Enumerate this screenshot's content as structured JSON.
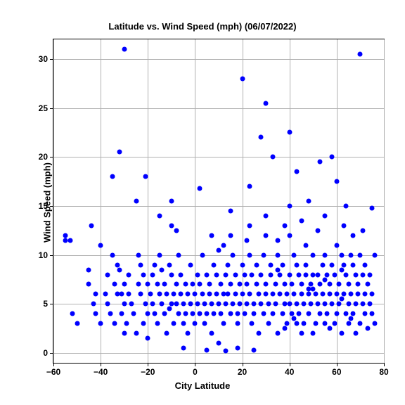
{
  "chart": {
    "type": "scatter",
    "title": "Latitude vs. Wind Speed (mph) (06/07/2022)",
    "title_fontsize": 13,
    "xlabel": "City Latitude",
    "ylabel": "Wind Speed (mph)",
    "label_fontsize": 13,
    "tick_fontsize": 12,
    "xlim": [
      -60,
      80
    ],
    "ylim": [
      -1,
      32
    ],
    "xticks": [
      -60,
      -40,
      -20,
      0,
      20,
      40,
      60,
      80
    ],
    "yticks": [
      0,
      5,
      10,
      15,
      20,
      25,
      30
    ],
    "background_color": "#ffffff",
    "grid_color": "#b0b0b0",
    "border_color": "#000000",
    "marker_color": "#0000ff",
    "marker_size": 7,
    "points": [
      [
        -55,
        11.5
      ],
      [
        -55,
        12
      ],
      [
        -53,
        11.5
      ],
      [
        -52,
        4
      ],
      [
        -50,
        3
      ],
      [
        -45,
        7
      ],
      [
        -45,
        8.5
      ],
      [
        -44,
        13
      ],
      [
        -43,
        5
      ],
      [
        -42,
        4
      ],
      [
        -42,
        6
      ],
      [
        -40,
        3
      ],
      [
        -40,
        11
      ],
      [
        -38,
        6
      ],
      [
        -37,
        8
      ],
      [
        -37,
        5
      ],
      [
        -36,
        4
      ],
      [
        -35,
        10
      ],
      [
        -35,
        18
      ],
      [
        -34,
        7
      ],
      [
        -34,
        3
      ],
      [
        -33,
        9
      ],
      [
        -33,
        6
      ],
      [
        -32,
        20.5
      ],
      [
        -32,
        8.5
      ],
      [
        -31,
        4
      ],
      [
        -31,
        6
      ],
      [
        -30,
        5
      ],
      [
        -30,
        7
      ],
      [
        -30,
        2
      ],
      [
        -30,
        31
      ],
      [
        -29,
        3
      ],
      [
        -28,
        8
      ],
      [
        -28,
        6
      ],
      [
        -27,
        5
      ],
      [
        -26,
        4
      ],
      [
        -25,
        2
      ],
      [
        -25,
        15.5
      ],
      [
        -24,
        10
      ],
      [
        -24,
        7
      ],
      [
        -23,
        6
      ],
      [
        -23,
        9
      ],
      [
        -22,
        3
      ],
      [
        -22,
        8
      ],
      [
        -21,
        5
      ],
      [
        -21,
        18
      ],
      [
        -20,
        4
      ],
      [
        -20,
        7
      ],
      [
        -20,
        1.5
      ],
      [
        -19,
        6
      ],
      [
        -18,
        8
      ],
      [
        -18,
        5
      ],
      [
        -17,
        9
      ],
      [
        -17,
        4
      ],
      [
        -16,
        7
      ],
      [
        -16,
        3
      ],
      [
        -15,
        6
      ],
      [
        -15,
        10
      ],
      [
        -15,
        14
      ],
      [
        -14,
        5
      ],
      [
        -14,
        8.5
      ],
      [
        -13,
        4
      ],
      [
        -13,
        7
      ],
      [
        -12,
        6
      ],
      [
        -12,
        2
      ],
      [
        -11,
        9
      ],
      [
        -11,
        4.5
      ],
      [
        -10,
        5
      ],
      [
        -10,
        8
      ],
      [
        -10,
        15.5
      ],
      [
        -10,
        13
      ],
      [
        -9,
        6
      ],
      [
        -9,
        3
      ],
      [
        -8,
        7
      ],
      [
        -8,
        5
      ],
      [
        -7,
        4
      ],
      [
        -7,
        10
      ],
      [
        -6,
        6
      ],
      [
        -6,
        8
      ],
      [
        -5,
        5
      ],
      [
        -5,
        3
      ],
      [
        -5,
        0.5
      ],
      [
        -4,
        7
      ],
      [
        -4,
        4
      ],
      [
        -3,
        6
      ],
      [
        -3,
        2
      ],
      [
        -2,
        5
      ],
      [
        -2,
        9
      ],
      [
        -1,
        4
      ],
      [
        -1,
        7
      ],
      [
        0,
        6
      ],
      [
        0,
        3
      ],
      [
        1,
        8
      ],
      [
        1,
        5
      ],
      [
        2,
        4
      ],
      [
        2,
        7
      ],
      [
        2,
        16.8
      ],
      [
        3,
        6
      ],
      [
        3,
        10
      ],
      [
        4,
        5
      ],
      [
        4,
        3
      ],
      [
        5,
        8
      ],
      [
        5,
        4
      ],
      [
        5,
        0.3
      ],
      [
        6,
        6
      ],
      [
        6,
        7
      ],
      [
        7,
        5
      ],
      [
        7,
        2
      ],
      [
        7,
        12
      ],
      [
        8,
        9
      ],
      [
        8,
        4
      ],
      [
        9,
        6
      ],
      [
        9,
        8
      ],
      [
        10,
        5
      ],
      [
        10,
        10.5
      ],
      [
        10,
        1
      ],
      [
        11,
        7
      ],
      [
        11,
        4
      ],
      [
        12,
        6
      ],
      [
        12,
        3
      ],
      [
        13,
        5
      ],
      [
        13,
        8
      ],
      [
        13,
        0.2
      ],
      [
        14,
        9
      ],
      [
        14,
        6
      ],
      [
        15,
        4
      ],
      [
        15,
        7
      ],
      [
        15,
        12
      ],
      [
        15,
        14.5
      ],
      [
        16,
        5
      ],
      [
        16,
        10
      ],
      [
        17,
        8
      ],
      [
        17,
        6
      ],
      [
        18,
        4
      ],
      [
        18,
        3
      ],
      [
        18,
        0.5
      ],
      [
        19,
        7
      ],
      [
        19,
        5
      ],
      [
        20,
        6
      ],
      [
        20,
        9
      ],
      [
        20,
        28
      ],
      [
        21,
        8
      ],
      [
        21,
        4
      ],
      [
        22,
        5
      ],
      [
        22,
        7
      ],
      [
        23,
        6
      ],
      [
        23,
        10
      ],
      [
        23,
        13
      ],
      [
        23,
        17
      ],
      [
        24,
        3
      ],
      [
        24,
        8
      ],
      [
        25,
        5
      ],
      [
        25,
        4
      ],
      [
        25,
        0.3
      ],
      [
        26,
        7
      ],
      [
        26,
        9
      ],
      [
        27,
        6
      ],
      [
        27,
        2
      ],
      [
        28,
        5
      ],
      [
        28,
        8
      ],
      [
        28,
        22
      ],
      [
        29,
        4
      ],
      [
        29,
        10
      ],
      [
        30,
        6
      ],
      [
        30,
        7
      ],
      [
        30,
        12
      ],
      [
        30,
        14
      ],
      [
        30,
        25.5
      ],
      [
        31,
        5
      ],
      [
        31,
        3
      ],
      [
        32,
        8
      ],
      [
        32,
        9
      ],
      [
        33,
        6
      ],
      [
        33,
        4
      ],
      [
        33,
        20
      ],
      [
        34,
        7
      ],
      [
        34,
        5
      ],
      [
        35,
        10
      ],
      [
        35,
        2
      ],
      [
        35,
        11.5
      ],
      [
        36,
        6
      ],
      [
        36,
        8
      ],
      [
        37,
        4
      ],
      [
        37,
        9
      ],
      [
        38,
        5
      ],
      [
        38,
        7
      ],
      [
        38,
        2.5
      ],
      [
        39,
        6
      ],
      [
        39,
        3
      ],
      [
        40,
        8
      ],
      [
        40,
        5
      ],
      [
        40,
        12
      ],
      [
        40,
        15
      ],
      [
        40,
        22.5
      ],
      [
        41,
        4
      ],
      [
        41,
        7
      ],
      [
        42,
        6
      ],
      [
        42,
        10
      ],
      [
        43,
        9
      ],
      [
        43,
        5
      ],
      [
        43,
        3
      ],
      [
        43,
        18.5
      ],
      [
        44,
        8
      ],
      [
        44,
        4
      ],
      [
        45,
        6
      ],
      [
        45,
        7
      ],
      [
        45,
        2
      ],
      [
        45,
        13.5
      ],
      [
        46,
        5
      ],
      [
        46,
        3
      ],
      [
        47,
        9
      ],
      [
        47,
        8
      ],
      [
        47,
        11
      ],
      [
        48,
        6
      ],
      [
        48,
        4
      ],
      [
        48,
        15.5
      ],
      [
        49,
        7
      ],
      [
        49,
        5
      ],
      [
        50,
        10
      ],
      [
        50,
        2
      ],
      [
        50,
        8
      ],
      [
        50,
        6.5
      ],
      [
        51,
        6
      ],
      [
        51,
        3
      ],
      [
        52,
        8
      ],
      [
        52,
        5
      ],
      [
        52,
        12.5
      ],
      [
        53,
        4
      ],
      [
        53,
        7
      ],
      [
        53,
        19.5
      ],
      [
        54,
        9
      ],
      [
        54,
        6
      ],
      [
        55,
        5
      ],
      [
        55,
        10
      ],
      [
        55,
        3
      ],
      [
        55,
        14
      ],
      [
        56,
        8
      ],
      [
        56,
        4
      ],
      [
        57,
        6
      ],
      [
        57,
        7
      ],
      [
        57,
        2.5
      ],
      [
        58,
        5
      ],
      [
        58,
        9
      ],
      [
        58,
        20
      ],
      [
        59,
        3
      ],
      [
        59,
        8
      ],
      [
        60,
        6
      ],
      [
        60,
        4
      ],
      [
        60,
        11
      ],
      [
        60,
        17.5
      ],
      [
        61,
        7
      ],
      [
        61,
        5
      ],
      [
        62,
        10
      ],
      [
        62,
        2
      ],
      [
        62,
        8.5
      ],
      [
        63,
        6
      ],
      [
        63,
        9
      ],
      [
        63,
        13
      ],
      [
        64,
        4
      ],
      [
        64,
        8
      ],
      [
        64,
        15
      ],
      [
        65,
        5
      ],
      [
        65,
        7
      ],
      [
        65,
        3
      ],
      [
        66,
        6
      ],
      [
        66,
        10
      ],
      [
        67,
        9
      ],
      [
        67,
        4
      ],
      [
        67,
        12
      ],
      [
        68,
        8
      ],
      [
        68,
        5
      ],
      [
        68,
        2
      ],
      [
        69,
        7
      ],
      [
        69,
        6
      ],
      [
        70,
        3
      ],
      [
        70,
        10
      ],
      [
        70,
        30.5
      ],
      [
        71,
        5
      ],
      [
        71,
        8
      ],
      [
        71,
        12.5
      ],
      [
        72,
        4
      ],
      [
        72,
        6
      ],
      [
        72,
        9
      ],
      [
        73,
        7
      ],
      [
        73,
        2.5
      ],
      [
        74,
        5
      ],
      [
        74,
        8
      ],
      [
        75,
        6
      ],
      [
        75,
        4
      ],
      [
        75,
        14.8
      ],
      [
        76,
        3
      ],
      [
        76,
        10
      ],
      [
        -8,
        12.5
      ],
      [
        12,
        11
      ],
      [
        22,
        11.5
      ],
      [
        35,
        8.5
      ],
      [
        42,
        3.5
      ],
      [
        48,
        6.5
      ],
      [
        55,
        7.5
      ],
      [
        62,
        5.5
      ],
      [
        66,
        3.5
      ],
      [
        38,
        13
      ]
    ]
  }
}
